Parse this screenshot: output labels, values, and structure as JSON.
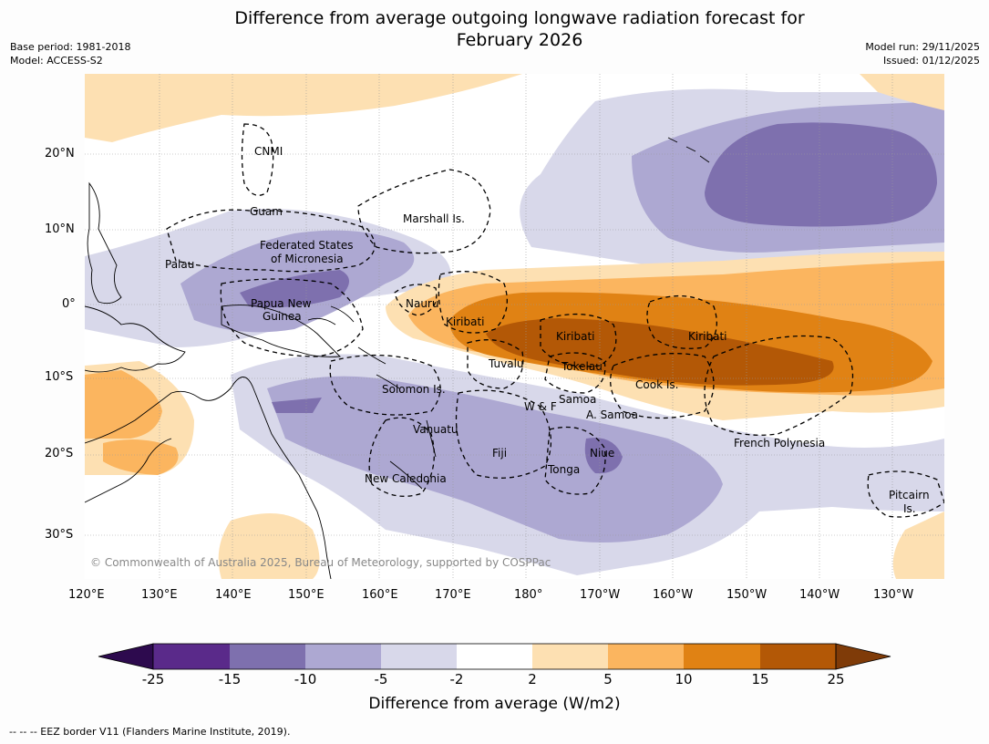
{
  "title_line1": "Difference from average outgoing longwave radiation forecast for",
  "title_line2": "February 2026",
  "base_period": "Base period: 1981-2018",
  "model": "Model: ACCESS-S2",
  "model_run": "Model run: 29/11/2025",
  "issued": "Issued: 01/12/2025",
  "copyright": "© Commonwealth of Australia 2025, Bureau of Meteorology, supported by COSPPac",
  "lat_labels": [
    "20°N",
    "10°N",
    "0°",
    "10°S",
    "20°S",
    "30°S"
  ],
  "lon_labels": [
    "120°E",
    "130°E",
    "140°E",
    "150°E",
    "160°E",
    "170°E",
    "180°",
    "170°W",
    "160°W",
    "150°W",
    "140°W",
    "130°W"
  ],
  "regions": {
    "cnmi": "CNMI",
    "guam": "Guam",
    "marshall": "Marshall Is.",
    "fsm_1": "Federated States",
    "fsm_2": "of Micronesia",
    "palau": "Palau",
    "png_1": "Papua New",
    "png_2": "Guinea",
    "nauru": "Nauru",
    "kiribati_w": "Kiribati",
    "kiribati_c": "Kiribati",
    "kiribati_e": "Kiribati",
    "tuvalu": "Tuvalu",
    "tokelau": "Tokelau",
    "cook": "Cook Is.",
    "samoa": "Samoa",
    "wf": "W & F",
    "asamoa": "A. Samoa",
    "solomon": "Solomon Is.",
    "vanuatu": "Vanuatu",
    "fiji": "Fiji",
    "niue": "Niue",
    "tonga": "Tonga",
    "frpoly": "French Polynesia",
    "newcal": "New Caledonia",
    "pitcairn_1": "Pitcairn",
    "pitcairn_2": "Is."
  },
  "colorbar": {
    "title": "Difference from average (W/m2)",
    "ticks": [
      "-25",
      "-15",
      "-10",
      "-5",
      "-2",
      "2",
      "5",
      "10",
      "15",
      "25"
    ],
    "colors": {
      "below_min": "#2d0a4e",
      "c1": "#5a2a8a",
      "c2": "#7e70ae",
      "c3": "#ada8d2",
      "c4": "#d8d8ea",
      "c5": "#ffffff",
      "c6": "#fde0b2",
      "c7": "#fbb55f",
      "c8": "#e08214",
      "c9": "#b35806",
      "above_max": "#7f3b08"
    }
  },
  "footer": "--  --  -- EEZ border V11 (Flanders Marine Institute, 2019)."
}
